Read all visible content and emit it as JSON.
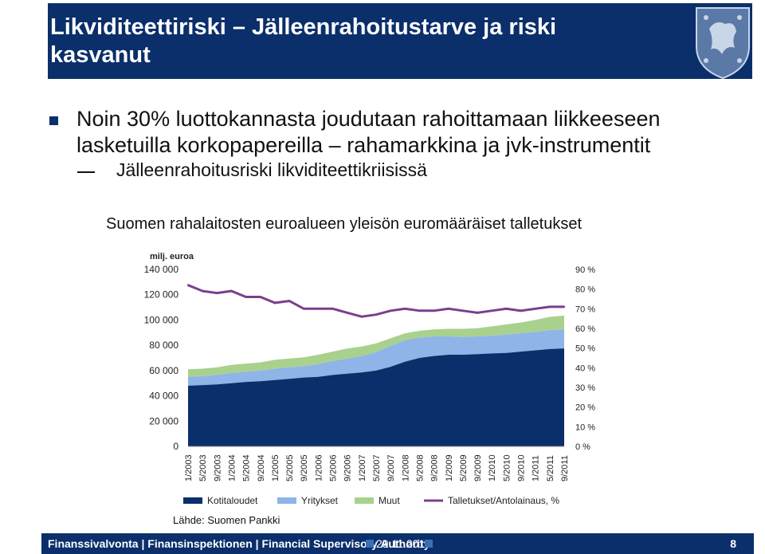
{
  "slide": {
    "title": "Likviditeettiriski – Jälleenrahoitustarve ja riski kasvanut",
    "bullet1": "Noin 30% luottokannasta joudutaan rahoittamaan liikkeeseen lasketuilla korkopapereilla – rahamarkkina ja jvk-instrumentit",
    "bullet2": "Jälleenrahoitusriski likviditeettikriisissä",
    "chart_title": "Suomen rahalaitosten euroalueen yleisön euromääräiset talletukset",
    "source": "Lähde: Suomen Pankki",
    "footer_text": "Finanssivalvonta | Finansinspektionen | Financial Supervisory Authority",
    "footer_date": "29.11.2011",
    "page_number": "8",
    "logo_icon": "lion-crest-icon"
  },
  "chart_data": {
    "type": "area",
    "ylabel_left": "milj. euroa",
    "left_ticks": [
      "140 000",
      "120 000",
      "100 000",
      "80 000",
      "60 000",
      "40 000",
      "20 000",
      "0"
    ],
    "right_ticks": [
      "90 %",
      "80 %",
      "70 %",
      "60 %",
      "50 %",
      "40 %",
      "30 %",
      "20 %",
      "10 %",
      "0 %"
    ],
    "ylim_left": [
      0,
      140000
    ],
    "ylim_right": [
      0,
      90
    ],
    "x_labels": [
      "1/2003",
      "5/2003",
      "9/2003",
      "1/2004",
      "5/2004",
      "9/2004",
      "1/2005",
      "5/2005",
      "9/2005",
      "1/2006",
      "5/2006",
      "9/2006",
      "1/2007",
      "5/2007",
      "9/2007",
      "1/2008",
      "5/2008",
      "9/2008",
      "1/2009",
      "5/2009",
      "9/2009",
      "1/2010",
      "5/2010",
      "9/2010",
      "1/2011",
      "5/2011",
      "9/2011"
    ],
    "series": [
      {
        "name": "Kotitaloudet",
        "color": "#0b2f6b",
        "values": [
          48000,
          48500,
          49000,
          50000,
          51000,
          51500,
          52500,
          53500,
          54500,
          55000,
          56500,
          57500,
          58500,
          60000,
          63000,
          67000,
          70000,
          71500,
          72500,
          72500,
          73000,
          73500,
          74000,
          75000,
          76000,
          77000,
          77500
        ]
      },
      {
        "name": "Yritykset",
        "color": "#8eb4e8",
        "values": [
          7000,
          7000,
          7500,
          8000,
          8000,
          8500,
          9000,
          9000,
          9000,
          10000,
          11000,
          12000,
          13000,
          14500,
          16500,
          17000,
          16000,
          15500,
          14500,
          14000,
          14000,
          14000,
          14500,
          14500,
          14500,
          15000,
          15000
        ]
      },
      {
        "name": "Muut",
        "color": "#a9d18e",
        "values": [
          6000,
          6000,
          6000,
          6500,
          6500,
          6500,
          7000,
          7000,
          7000,
          7500,
          7500,
          8000,
          7500,
          7000,
          6000,
          5500,
          5500,
          5500,
          6000,
          6500,
          6500,
          7500,
          8000,
          8500,
          9500,
          10500,
          11000
        ]
      },
      {
        "name": "Talletukset/Antolainaus, %",
        "color": "#7b3f8e",
        "axis": "right",
        "values": [
          82,
          79,
          78,
          79,
          76,
          76,
          73,
          74,
          70,
          70,
          70,
          68,
          66,
          67,
          69,
          70,
          69,
          69,
          70,
          69,
          68,
          69,
          70,
          69,
          70,
          71,
          71
        ]
      }
    ]
  }
}
